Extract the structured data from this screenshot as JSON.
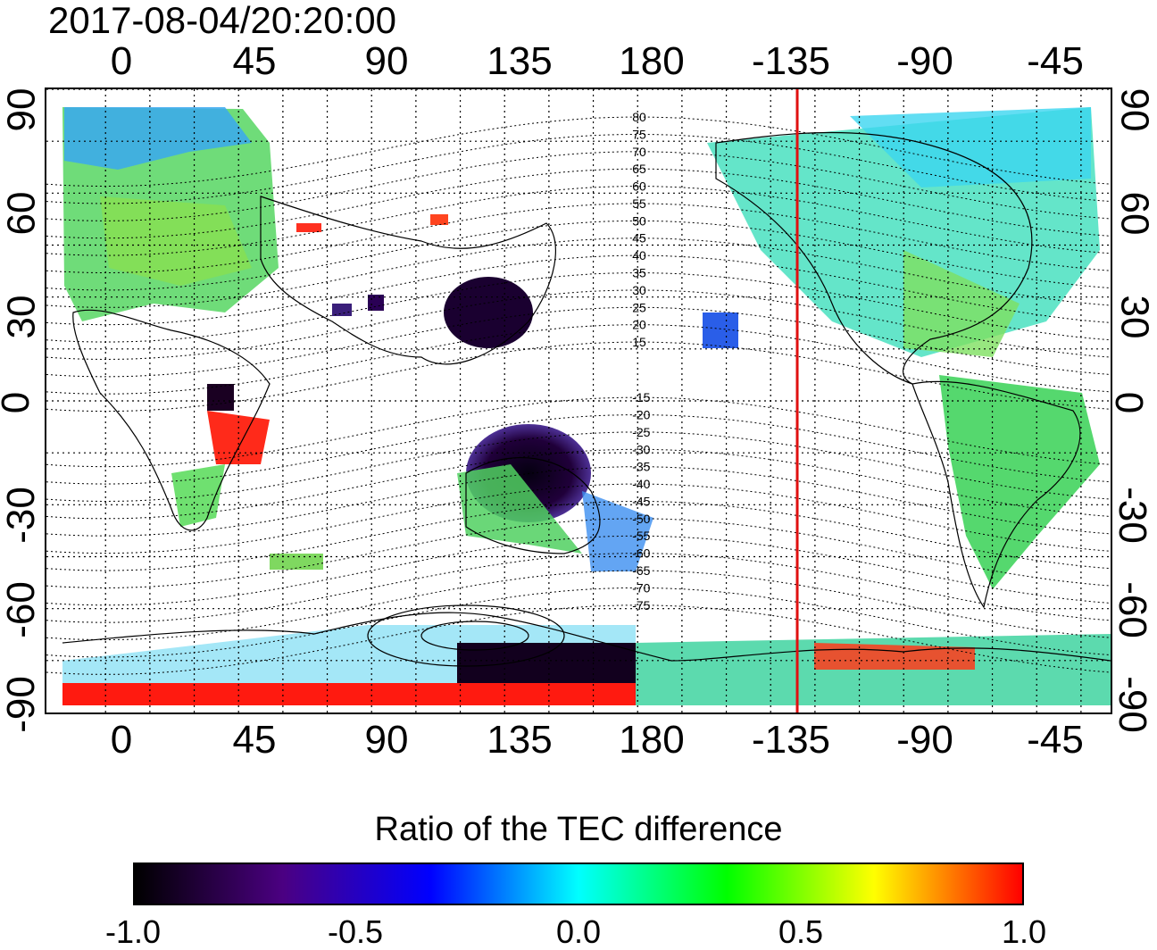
{
  "title": "2017-08-04/20:20:00",
  "map": {
    "longitude_ticks": [
      "0",
      "45",
      "90",
      "135",
      "180",
      "-135",
      "-90",
      "-45"
    ],
    "latitude_ticks": [
      "90",
      "60",
      "30",
      "0",
      "-30",
      "-60",
      "-90"
    ],
    "marker_longitude": -126,
    "marker_color": "#e01010",
    "magnetic_latitude_contours_north": [
      "80",
      "75",
      "70",
      "65",
      "60",
      "55",
      "50",
      "45",
      "40",
      "35",
      "30",
      "25",
      "20",
      "15"
    ],
    "magnetic_latitude_contours_south": [
      "-15",
      "-20",
      "-25",
      "-30",
      "-35",
      "-40",
      "-45",
      "-50",
      "-55",
      "-60",
      "-65",
      "-70",
      "-75"
    ]
  },
  "colorbar": {
    "title": "Ratio of the TEC difference",
    "ticks": [
      "-1.0",
      "-0.5",
      "0.0",
      "0.5",
      "1.0"
    ],
    "range": [
      -1.0,
      1.0
    ],
    "colors": [
      "#000000",
      "#4b0082",
      "#0000ff",
      "#00ffff",
      "#00ff00",
      "#ffff00",
      "#ff0000"
    ]
  }
}
